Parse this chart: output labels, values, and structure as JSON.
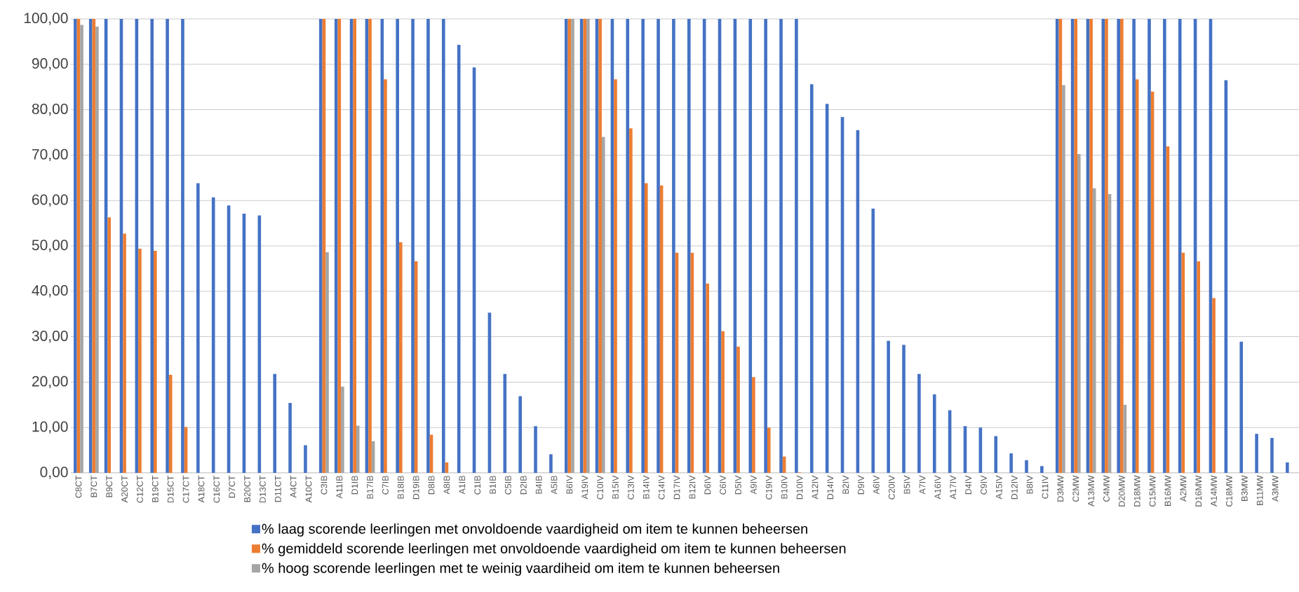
{
  "chart_data": {
    "type": "bar",
    "categories": [
      "C8CT",
      "B7CT",
      "B9CT",
      "A20CT",
      "C12CT",
      "B19CT",
      "D15CT",
      "C17CT",
      "A18CT",
      "C16CT",
      "D7CT",
      "B20CT",
      "D13CT",
      "D11CT",
      "A4CT",
      "A10CT",
      "C3IB",
      "A11IB",
      "D1IB",
      "B17IB",
      "C7IB",
      "B18IB",
      "D19IB",
      "D8IB",
      "A8IB",
      "A1IB",
      "C1IB",
      "B1IB",
      "C5IB",
      "D2IB",
      "B4IB",
      "A5IB",
      "B6IV",
      "A19IV",
      "C10IV",
      "B15IV",
      "C13IV",
      "B14IV",
      "C14IV",
      "D17IV",
      "B12IV",
      "D6IV",
      "C6IV",
      "D5IV",
      "A9IV",
      "C19IV",
      "B10IV",
      "D10IV",
      "A12IV",
      "D14IV",
      "B2IV",
      "D9IV",
      "A6IV",
      "C20IV",
      "B5IV",
      "A7IV",
      "A16IV",
      "A17IV",
      "D4IV",
      "C9IV",
      "A15IV",
      "D12IV",
      "B8IV",
      "C11IV",
      "D3MW",
      "C2MW",
      "A13MW",
      "C4MW",
      "D20MW",
      "D18MW",
      "C15MW",
      "B16MW",
      "A2MW",
      "D16MW",
      "A14MW",
      "C18MW",
      "B3MW",
      "B11MW",
      "A3MW",
      null
    ],
    "series": [
      {
        "name": "% laag scorende leerlingen met onvoldoende vaardigheid om item te kunnen beheersen",
        "color": "#4472c4",
        "values": [
          100,
          100,
          100,
          100,
          100,
          100,
          100,
          100,
          63.8,
          60.7,
          58.9,
          57.1,
          56.7,
          21.8,
          15.4,
          6.1,
          100,
          100,
          100,
          100,
          100,
          100,
          100,
          100,
          100,
          94.3,
          89.3,
          35.3,
          21.8,
          16.9,
          10.3,
          4.1,
          100,
          100,
          100,
          100,
          100,
          100,
          100,
          100,
          100,
          100,
          100,
          100,
          100,
          100,
          100,
          100,
          85.6,
          81.3,
          78.4,
          75.5,
          58.2,
          29.1,
          28.2,
          21.8,
          17.3,
          13.8,
          10.3,
          10.0,
          8.1,
          4.3,
          2.8,
          1.5,
          100,
          100,
          100,
          100,
          100,
          100,
          100,
          100,
          100,
          100,
          100,
          86.5,
          28.9,
          8.6,
          7.7,
          2.3
        ]
      },
      {
        "name": "% gemiddeld scorende leerlingen met onvoldoende vaardigheid om item te kunnen beheersen",
        "color": "#ed7d31",
        "values": [
          100,
          100,
          56.3,
          52.7,
          49.4,
          48.9,
          21.6,
          10.1,
          0,
          0,
          0,
          0,
          0,
          0,
          0,
          0,
          100,
          100,
          100,
          100,
          86.7,
          50.8,
          46.6,
          8.4,
          2.3,
          0,
          0,
          0,
          0,
          0,
          0,
          0,
          100,
          100,
          100,
          86.7,
          75.9,
          63.8,
          63.3,
          48.5,
          48.5,
          41.7,
          31.2,
          27.8,
          21.1,
          10.0,
          3.6,
          0.1,
          0,
          0,
          0,
          0,
          0,
          0,
          0,
          0,
          0,
          0,
          0,
          0,
          0,
          0,
          0,
          0,
          100,
          100,
          100,
          100,
          100,
          86.7,
          84.0,
          71.9,
          48.5,
          46.6,
          38.5,
          0,
          0,
          0,
          0,
          0
        ]
      },
      {
        "name": "% hoog scorende leerlingen met te weinig vaardiheid om item te kunnen beheersen",
        "color": "#a5a5a5",
        "values": [
          98.7,
          98.3,
          0,
          0,
          0,
          0,
          0,
          0,
          0,
          0,
          0,
          0,
          0,
          0,
          0,
          0,
          48.6,
          19.0,
          10.4,
          7.0,
          0,
          0,
          0,
          0,
          0,
          0,
          0,
          0,
          0,
          0,
          0,
          0,
          100,
          100,
          74.0,
          0,
          0,
          0,
          0,
          0,
          0,
          0,
          0,
          0,
          0,
          0,
          0,
          0,
          0,
          0,
          0,
          0,
          0,
          0,
          0,
          0,
          0,
          0,
          0,
          0,
          0,
          0,
          0,
          0,
          85.4,
          70.2,
          62.7,
          61.4,
          15.0,
          0,
          0,
          0,
          0,
          0,
          0,
          0,
          0,
          0,
          0,
          0
        ]
      }
    ],
    "ylim": [
      0,
      100
    ],
    "yticks": [
      {
        "value": 0,
        "label": "0,00"
      },
      {
        "value": 10,
        "label": "10,00"
      },
      {
        "value": 20,
        "label": "20,00"
      },
      {
        "value": 30,
        "label": "30,00"
      },
      {
        "value": 40,
        "label": "40,00"
      },
      {
        "value": 50,
        "label": "50,00"
      },
      {
        "value": 60,
        "label": "60,00"
      },
      {
        "value": 70,
        "label": "70,00"
      },
      {
        "value": 80,
        "label": "80,00"
      },
      {
        "value": 90,
        "label": "90,00"
      },
      {
        "value": 100,
        "label": "100,00"
      }
    ],
    "grid": "y",
    "legend": "bottom"
  }
}
